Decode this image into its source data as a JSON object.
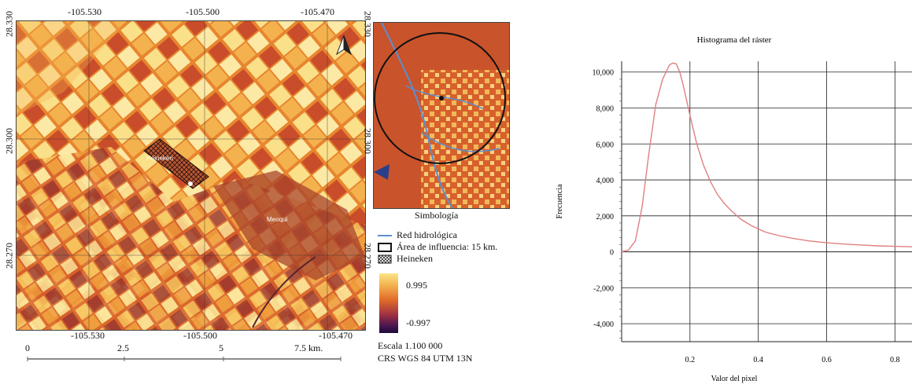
{
  "main_map": {
    "top_ticks": [
      "-105.530",
      "-105.500",
      "-105.470"
    ],
    "bottom_ticks": [
      "-105.530",
      "-105.500",
      "-105.470"
    ],
    "left_ticks": [
      "28.330",
      "28.300",
      "28.270"
    ],
    "right_ticks": [
      "28.330",
      "28.300",
      "28.270"
    ],
    "place_labels": {
      "heineken": "Heineken",
      "meoqui": "Meoqui"
    },
    "north_arrow": "north-arrow-icon",
    "scalebar": {
      "labels": [
        "0",
        "2.5",
        "5",
        "7.5 km."
      ]
    }
  },
  "inset_map": {
    "title": "Simbología"
  },
  "legend": {
    "items": [
      {
        "label": "Red hidrológica",
        "icon": "blue-line"
      },
      {
        "label": "Área de influencia:  15 km.",
        "icon": "black-rectangle"
      },
      {
        "label": "Heineken",
        "icon": "hatched-box"
      }
    ],
    "ramp_max": "0.995",
    "ramp_min": "-0.997",
    "scale_text": "Escala 1.100 000",
    "crs_text": "CRS WGS 84 UTM 13N",
    "colors": {
      "high": "#fbe58a",
      "mid": "#e06a2a",
      "low": "#1b0a3a",
      "water": "#5b8fd0"
    }
  },
  "chart_data": {
    "type": "line",
    "title": "Histograma  del ráster",
    "xlabel": "Valor del pixel",
    "ylabel": "Frecuencia",
    "xlim": [
      0.0,
      0.85
    ],
    "ylim": [
      -5000,
      10600
    ],
    "x_ticks": [
      "0.2",
      "0.4",
      "0.6",
      "0.8"
    ],
    "y_ticks": [
      "10,000",
      "8,000",
      "6,000",
      "4,000",
      "2,000",
      "0",
      "-2,000",
      "-4,000"
    ],
    "line_color": "#e08080",
    "series": [
      {
        "x": [
          0.0,
          0.02,
          0.04,
          0.06,
          0.08,
          0.1,
          0.12,
          0.14,
          0.15,
          0.16,
          0.17,
          0.18,
          0.2,
          0.22,
          0.24,
          0.26,
          0.28,
          0.3,
          0.32,
          0.35,
          0.38,
          0.42,
          0.46,
          0.5,
          0.55,
          0.6,
          0.65,
          0.7,
          0.75,
          0.8,
          0.85
        ],
        "y": [
          0,
          100,
          600,
          2500,
          5500,
          8200,
          9600,
          10400,
          10500,
          10450,
          10000,
          9300,
          7600,
          6000,
          4800,
          3900,
          3200,
          2700,
          2300,
          1800,
          1450,
          1100,
          900,
          750,
          600,
          500,
          430,
          380,
          330,
          300,
          280
        ]
      }
    ]
  }
}
